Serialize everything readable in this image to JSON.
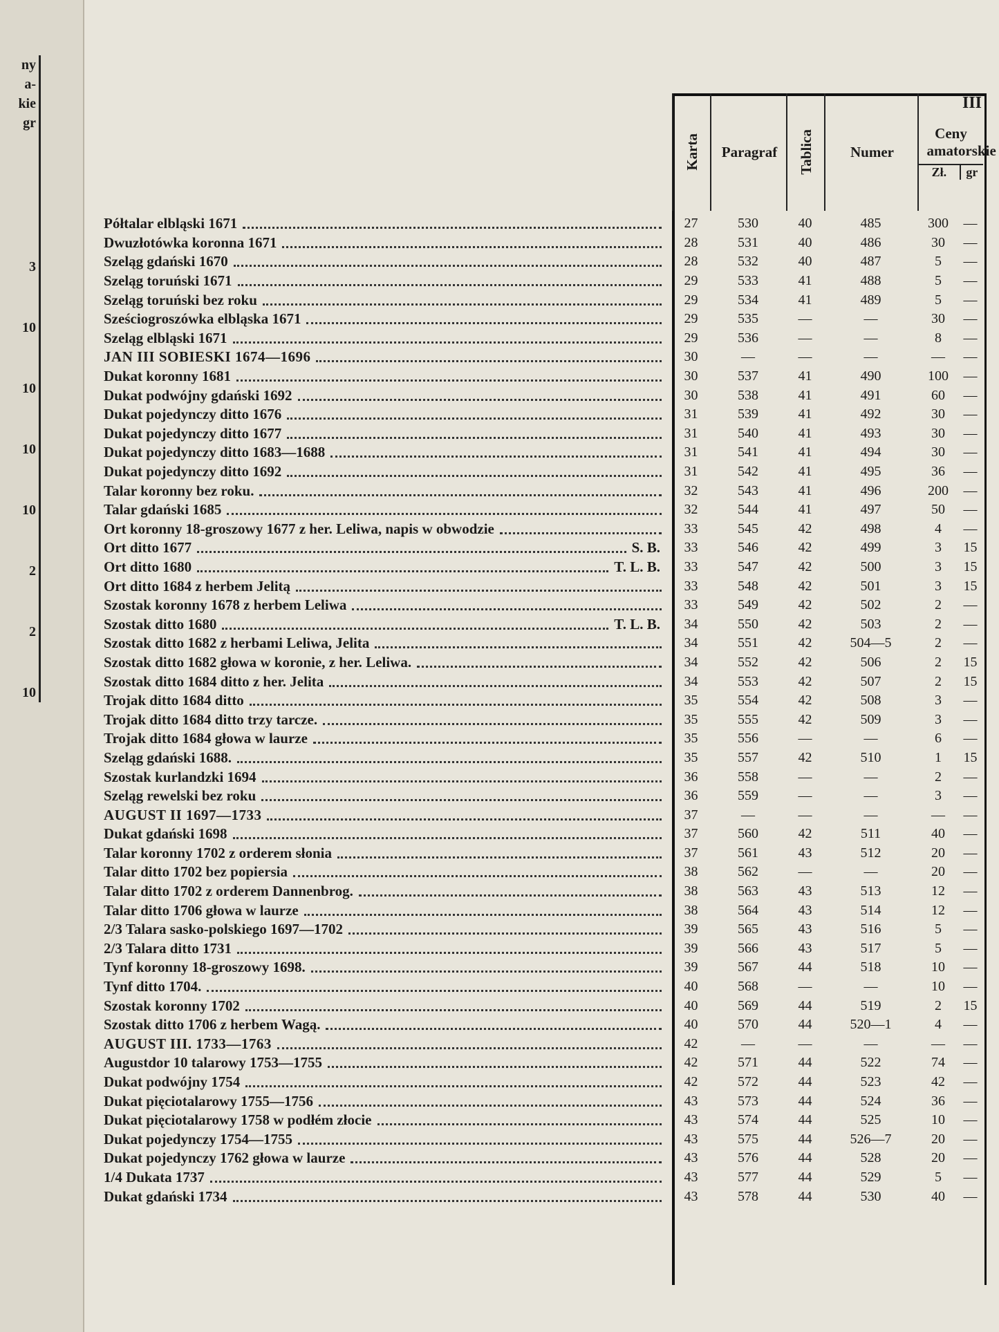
{
  "page_number": "III",
  "left_edge": {
    "header": [
      "ny",
      "a-",
      "kie",
      "gr"
    ],
    "values": [
      "3",
      "10",
      "10",
      "10",
      "10",
      "2",
      "2",
      "10"
    ]
  },
  "table": {
    "headers": {
      "karta": "Karta",
      "paragraf": "Paragraf",
      "tablica": "Tablica",
      "numer": "Numer",
      "ceny": "Ceny amatorskie",
      "zl": "Zł.",
      "gr": "gr"
    },
    "rows": [
      {
        "text": "Półtalar elbląski 1671",
        "cells": [
          "27",
          "530",
          "40",
          "485",
          "300",
          "—"
        ]
      },
      {
        "text": "Dwuzłotówka koronna 1671",
        "cells": [
          "28",
          "531",
          "40",
          "486",
          "30",
          "—"
        ]
      },
      {
        "text": "Szeląg gdański 1670",
        "cells": [
          "28",
          "532",
          "40",
          "487",
          "5",
          "—"
        ]
      },
      {
        "text": "Szeląg toruński 1671",
        "cells": [
          "29",
          "533",
          "41",
          "488",
          "5",
          "—"
        ]
      },
      {
        "text": "Szeląg toruński bez roku",
        "cells": [
          "29",
          "534",
          "41",
          "489",
          "5",
          "—"
        ]
      },
      {
        "text": "Sześciogroszówka elbląska 1671",
        "cells": [
          "29",
          "535",
          "—",
          "—",
          "30",
          "—"
        ]
      },
      {
        "text": "Szeląg elbląski 1671",
        "cells": [
          "29",
          "536",
          "—",
          "—",
          "8",
          "—"
        ]
      },
      {
        "section": "JAN III SOBIESKI 1674—1696",
        "cells": [
          "30",
          "—",
          "—",
          "—",
          "—",
          "—"
        ]
      },
      {
        "text": "Dukat koronny 1681",
        "cells": [
          "30",
          "537",
          "41",
          "490",
          "100",
          "—"
        ]
      },
      {
        "text": "Dukat podwójny gdański 1692",
        "cells": [
          "30",
          "538",
          "41",
          "491",
          "60",
          "—"
        ]
      },
      {
        "text": "Dukat pojedynczy ditto 1676",
        "cells": [
          "31",
          "539",
          "41",
          "492",
          "30",
          "—"
        ]
      },
      {
        "text": "Dukat pojedynczy ditto 1677",
        "cells": [
          "31",
          "540",
          "41",
          "493",
          "30",
          "—"
        ]
      },
      {
        "text": "Dukat pojedynczy ditto 1683—1688",
        "cells": [
          "31",
          "541",
          "41",
          "494",
          "30",
          "—"
        ]
      },
      {
        "text": "Dukat pojedynczy ditto 1692",
        "cells": [
          "31",
          "542",
          "41",
          "495",
          "36",
          "—"
        ]
      },
      {
        "text": "Talar koronny bez roku.",
        "cells": [
          "32",
          "543",
          "41",
          "496",
          "200",
          "—"
        ]
      },
      {
        "text": "Talar gdański 1685",
        "cells": [
          "32",
          "544",
          "41",
          "497",
          "50",
          "—"
        ]
      },
      {
        "text": "Ort koronny 18-groszowy 1677 z her. Leliwa, napis w obwodzie",
        "cells": [
          "33",
          "545",
          "42",
          "498",
          "4",
          "—"
        ]
      },
      {
        "text": "Ort ditto 1677",
        "suffix": "S. B.",
        "cells": [
          "33",
          "546",
          "42",
          "499",
          "3",
          "15"
        ]
      },
      {
        "text": "Ort ditto 1680",
        "suffix": "T. L. B.",
        "cells": [
          "33",
          "547",
          "42",
          "500",
          "3",
          "15"
        ]
      },
      {
        "text": "Ort ditto 1684 z herbem Jelitą",
        "cells": [
          "33",
          "548",
          "42",
          "501",
          "3",
          "15"
        ]
      },
      {
        "text": "Szostak koronny 1678 z herbem Leliwa",
        "cells": [
          "33",
          "549",
          "42",
          "502",
          "2",
          "—"
        ]
      },
      {
        "text": "Szostak ditto 1680",
        "suffix": "T. L. B.",
        "cells": [
          "34",
          "550",
          "42",
          "503",
          "2",
          "—"
        ]
      },
      {
        "text": "Szostak ditto 1682 z herbami Leliwa, Jelita",
        "cells": [
          "34",
          "551",
          "42",
          "504—5",
          "2",
          "—"
        ]
      },
      {
        "text": "Szostak ditto 1682 głowa w koronie, z her. Leliwa.",
        "cells": [
          "34",
          "552",
          "42",
          "506",
          "2",
          "15"
        ]
      },
      {
        "text": "Szostak ditto 1684 ditto z her. Jelita",
        "cells": [
          "34",
          "553",
          "42",
          "507",
          "2",
          "15"
        ]
      },
      {
        "text": "Trojak ditto 1684 ditto",
        "cells": [
          "35",
          "554",
          "42",
          "508",
          "3",
          "—"
        ]
      },
      {
        "text": "Trojak ditto 1684 ditto trzy tarcze.",
        "cells": [
          "35",
          "555",
          "42",
          "509",
          "3",
          "—"
        ]
      },
      {
        "text": "Trojak ditto 1684 głowa w laurze",
        "cells": [
          "35",
          "556",
          "—",
          "—",
          "6",
          "—"
        ]
      },
      {
        "text": "Szeląg gdański 1688.",
        "cells": [
          "35",
          "557",
          "42",
          "510",
          "1",
          "15"
        ]
      },
      {
        "text": "Szostak kurlandzki 1694",
        "cells": [
          "36",
          "558",
          "—",
          "—",
          "2",
          "—"
        ]
      },
      {
        "text": "Szeląg rewelski bez roku",
        "cells": [
          "36",
          "559",
          "—",
          "—",
          "3",
          "—"
        ]
      },
      {
        "section": "AUGUST II 1697—1733",
        "cells": [
          "37",
          "—",
          "—",
          "—",
          "—",
          "—"
        ]
      },
      {
        "text": "Dukat gdański 1698",
        "cells": [
          "37",
          "560",
          "42",
          "511",
          "40",
          "—"
        ]
      },
      {
        "text": "Talar koronny 1702 z orderem słonia",
        "cells": [
          "37",
          "561",
          "43",
          "512",
          "20",
          "—"
        ]
      },
      {
        "text": "Talar ditto 1702 bez popiersia",
        "cells": [
          "38",
          "562",
          "—",
          "—",
          "20",
          "—"
        ]
      },
      {
        "text": "Talar ditto 1702 z orderem Dannenbrog.",
        "cells": [
          "38",
          "563",
          "43",
          "513",
          "12",
          "—"
        ]
      },
      {
        "text": "Talar ditto 1706 głowa w laurze",
        "cells": [
          "38",
          "564",
          "43",
          "514",
          "12",
          "—"
        ]
      },
      {
        "text": "2/3 Talara sasko-polskiego 1697—1702",
        "cells": [
          "39",
          "565",
          "43",
          "516",
          "5",
          "—"
        ]
      },
      {
        "text": "2/3 Talara ditto 1731",
        "cells": [
          "39",
          "566",
          "43",
          "517",
          "5",
          "—"
        ]
      },
      {
        "text": "Tynf koronny 18-groszowy 1698.",
        "cells": [
          "39",
          "567",
          "44",
          "518",
          "10",
          "—"
        ]
      },
      {
        "text": "Tynf ditto 1704.",
        "cells": [
          "40",
          "568",
          "—",
          "—",
          "10",
          "—"
        ]
      },
      {
        "text": "Szostak koronny 1702",
        "cells": [
          "40",
          "569",
          "44",
          "519",
          "2",
          "15"
        ]
      },
      {
        "text": "Szostak ditto 1706 z herbem Wagą.",
        "cells": [
          "40",
          "570",
          "44",
          "520—1",
          "4",
          "—"
        ]
      },
      {
        "section": "AUGUST III. 1733—1763",
        "cells": [
          "42",
          "—",
          "—",
          "—",
          "—",
          "—"
        ]
      },
      {
        "text": "Augustdor 10 talarowy 1753—1755",
        "cells": [
          "42",
          "571",
          "44",
          "522",
          "74",
          "—"
        ]
      },
      {
        "text": "Dukat podwójny 1754",
        "cells": [
          "42",
          "572",
          "44",
          "523",
          "42",
          "—"
        ]
      },
      {
        "text": "Dukat pięciotalarowy 1755—1756",
        "cells": [
          "43",
          "573",
          "44",
          "524",
          "36",
          "—"
        ]
      },
      {
        "text": "Dukat pięciotalarowy 1758 w podłém złocie",
        "cells": [
          "43",
          "574",
          "44",
          "525",
          "10",
          "—"
        ]
      },
      {
        "text": "Dukat pojedynczy 1754—1755",
        "cells": [
          "43",
          "575",
          "44",
          "526—7",
          "20",
          "—"
        ]
      },
      {
        "text": "Dukat pojedynczy 1762 głowa w laurze",
        "cells": [
          "43",
          "576",
          "44",
          "528",
          "20",
          "—"
        ]
      },
      {
        "text": "1/4 Dukata 1737",
        "cells": [
          "43",
          "577",
          "44",
          "529",
          "5",
          "—"
        ]
      },
      {
        "text": "Dukat gdański 1734",
        "cells": [
          "43",
          "578",
          "44",
          "530",
          "40",
          "—"
        ]
      }
    ]
  }
}
